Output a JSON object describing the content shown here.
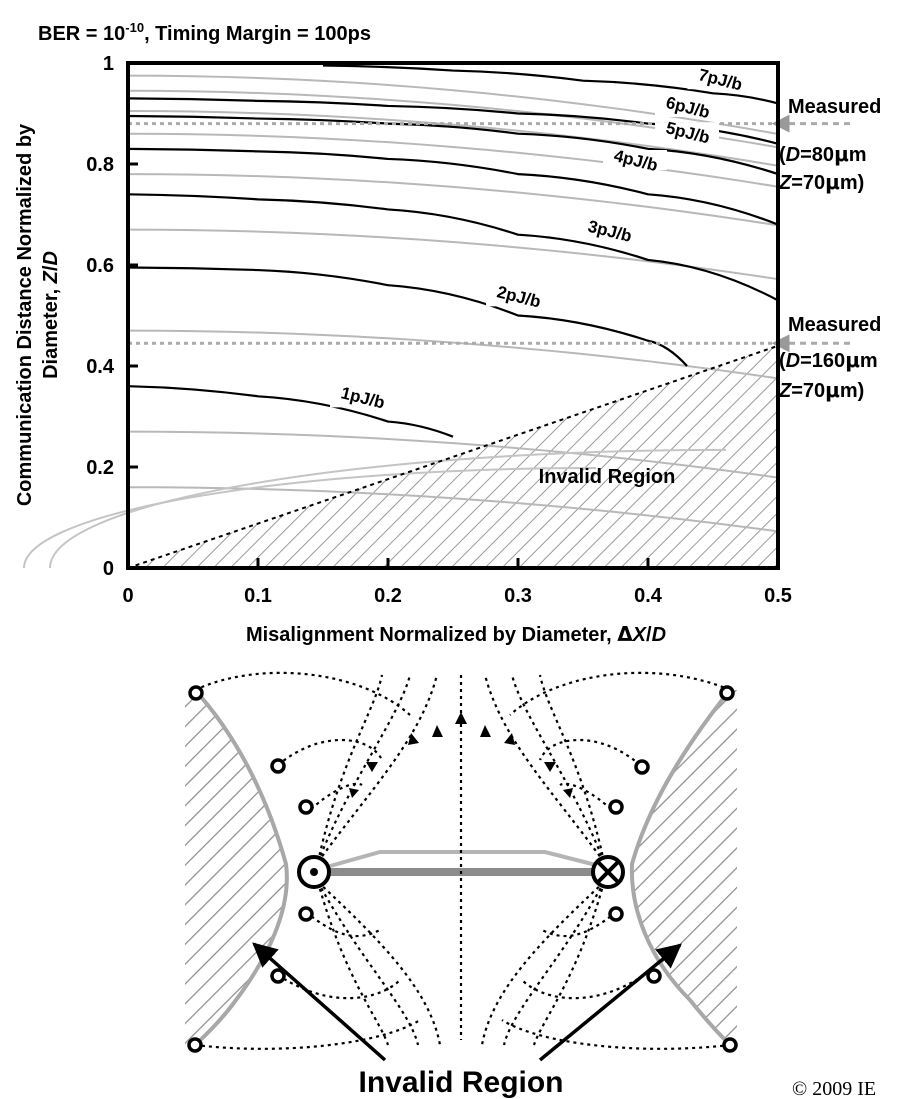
{
  "header": {
    "condition_text": "BER = 10⁻¹⁰, Timing Margin = 100ps"
  },
  "chart_data": {
    "type": "line",
    "subtype": "contour",
    "title": "BER = 10⁻¹⁰, Timing Margin = 100ps",
    "xlabel": "Misalignment Normalized by Diameter, ΔX/D",
    "ylabel_line1": "Communication Distance Normalized by",
    "ylabel_line2": "Diameter, Z/D",
    "xlim": [
      0,
      0.5
    ],
    "ylim": [
      0,
      1
    ],
    "x_ticks": [
      "0",
      "0.1",
      "0.2",
      "0.3",
      "0.4",
      "0.5"
    ],
    "y_ticks": [
      "0",
      "0.2",
      "0.4",
      "0.6",
      "0.8",
      "1"
    ],
    "grid": false,
    "series": [
      {
        "name": "1pJ/b",
        "color": "#000000",
        "x": [
          0,
          0.1,
          0.2,
          0.25
        ],
        "y": [
          0.36,
          0.34,
          0.29,
          0.26
        ]
      },
      {
        "name": "2pJ/b",
        "color": "#000000",
        "x": [
          0,
          0.1,
          0.2,
          0.3,
          0.4,
          0.43
        ],
        "y": [
          0.595,
          0.59,
          0.56,
          0.5,
          0.45,
          0.4
        ]
      },
      {
        "name": "3pJ/b",
        "color": "#000000",
        "x": [
          0,
          0.1,
          0.2,
          0.3,
          0.4,
          0.5
        ],
        "y": [
          0.74,
          0.73,
          0.71,
          0.66,
          0.61,
          0.53
        ]
      },
      {
        "name": "4pJ/b",
        "color": "#000000",
        "x": [
          0,
          0.1,
          0.2,
          0.3,
          0.4,
          0.5
        ],
        "y": [
          0.83,
          0.825,
          0.81,
          0.78,
          0.74,
          0.68
        ]
      },
      {
        "name": "5pJ/b",
        "color": "#000000",
        "x": [
          0,
          0.1,
          0.2,
          0.3,
          0.4,
          0.5
        ],
        "y": [
          0.895,
          0.89,
          0.88,
          0.86,
          0.83,
          0.78
        ]
      },
      {
        "name": "6pJ/b",
        "color": "#000000",
        "x": [
          0,
          0.1,
          0.2,
          0.3,
          0.4,
          0.5
        ],
        "y": [
          0.93,
          0.925,
          0.915,
          0.9,
          0.88,
          0.84
        ]
      },
      {
        "name": "7pJ/b",
        "color": "#000000",
        "x": [
          0.15,
          0.25,
          0.35,
          0.45,
          0.5
        ],
        "y": [
          0.995,
          0.985,
          0.965,
          0.94,
          0.92
        ]
      }
    ],
    "contour_labels": [
      {
        "text": "1pJ/b",
        "x": 0.18,
        "y": 0.33
      },
      {
        "text": "2pJ/b",
        "x": 0.3,
        "y": 0.53
      },
      {
        "text": "3pJ/b",
        "x": 0.37,
        "y": 0.66
      },
      {
        "text": "4pJ/b",
        "x": 0.39,
        "y": 0.8
      },
      {
        "text": "5pJ/b",
        "x": 0.43,
        "y": 0.855
      },
      {
        "text": "6pJ/b",
        "x": 0.43,
        "y": 0.905
      },
      {
        "text": "7pJ/b",
        "x": 0.455,
        "y": 0.96
      }
    ],
    "invalid_boundary": {
      "x": [
        0,
        0.5
      ],
      "y": [
        0,
        0.44
      ]
    },
    "region_label": "Invalid Region",
    "measured_lines": [
      {
        "y": 0.88,
        "label": "Measured",
        "detail_line1": "(D=80μm",
        "detail_line2": "Z=70μm)"
      },
      {
        "y": 0.445,
        "label": "Measured",
        "detail_line1": "(D=160μm",
        "detail_line2": "Z=70μm)"
      }
    ]
  },
  "diagram": {
    "region_label": "Invalid Region"
  },
  "copyright": "© 2009 IE"
}
